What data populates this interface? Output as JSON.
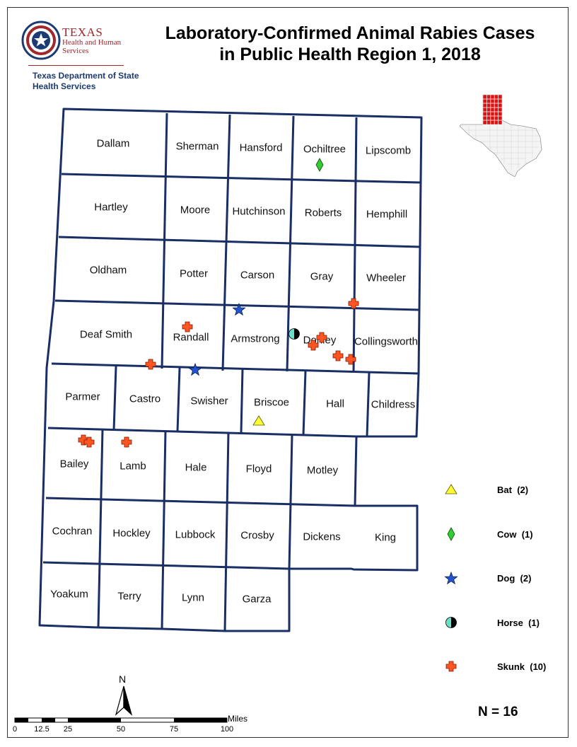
{
  "header": {
    "title_line1": "Laboratory-Confirmed Animal Rabies Cases",
    "title_line2": "in Public Health Region 1, 2018",
    "logo": {
      "org_line1": "TEXAS",
      "org_line2": "Health and Human",
      "org_line3": "Services",
      "dept_line1": "Texas Department of State",
      "dept_line2": "Health Services"
    }
  },
  "counties": [
    "Dallam",
    "Sherman",
    "Hansford",
    "Ochiltree",
    "Lipscomb",
    "Hartley",
    "Moore",
    "Hutchinson",
    "Roberts",
    "Hemphill",
    "Oldham",
    "Potter",
    "Carson",
    "Gray",
    "Wheeler",
    "Deaf Smith",
    "Randall",
    "Armstrong",
    "Donley",
    "Collingsworth",
    "Parmer",
    "Castro",
    "Swisher",
    "Briscoe",
    "Hall",
    "Childress",
    "Bailey",
    "Lamb",
    "Hale",
    "Floyd",
    "Motley",
    "Cochran",
    "Hockley",
    "Lubbock",
    "Crosby",
    "Dickens",
    "King",
    "Yoakum",
    "Terry",
    "Lynn",
    "Garza"
  ],
  "legend": [
    {
      "species": "Bat",
      "count": "(2)",
      "color": "#ffff33",
      "icon": "triangle-icon"
    },
    {
      "species": "Cow",
      "count": "(1)",
      "color": "#33cc33",
      "icon": "diamond-icon"
    },
    {
      "species": "Dog",
      "count": "(2)",
      "color": "#2255cc",
      "icon": "star-icon"
    },
    {
      "species": "Horse",
      "count": "(1)",
      "color": "#66e0c8",
      "icon": "half-circle-icon"
    },
    {
      "species": "Skunk",
      "count": "(10)",
      "color": "#ff5522",
      "icon": "cross-icon"
    }
  ],
  "total": "N = 16",
  "scale_bar": {
    "unit": "Miles",
    "ticks": [
      "0",
      "12.5",
      "25",
      "50",
      "75",
      "100"
    ]
  },
  "north_arrow": "N",
  "inset": {
    "highlight_color": "#dd1111",
    "icon": "texas-locator-icon"
  }
}
